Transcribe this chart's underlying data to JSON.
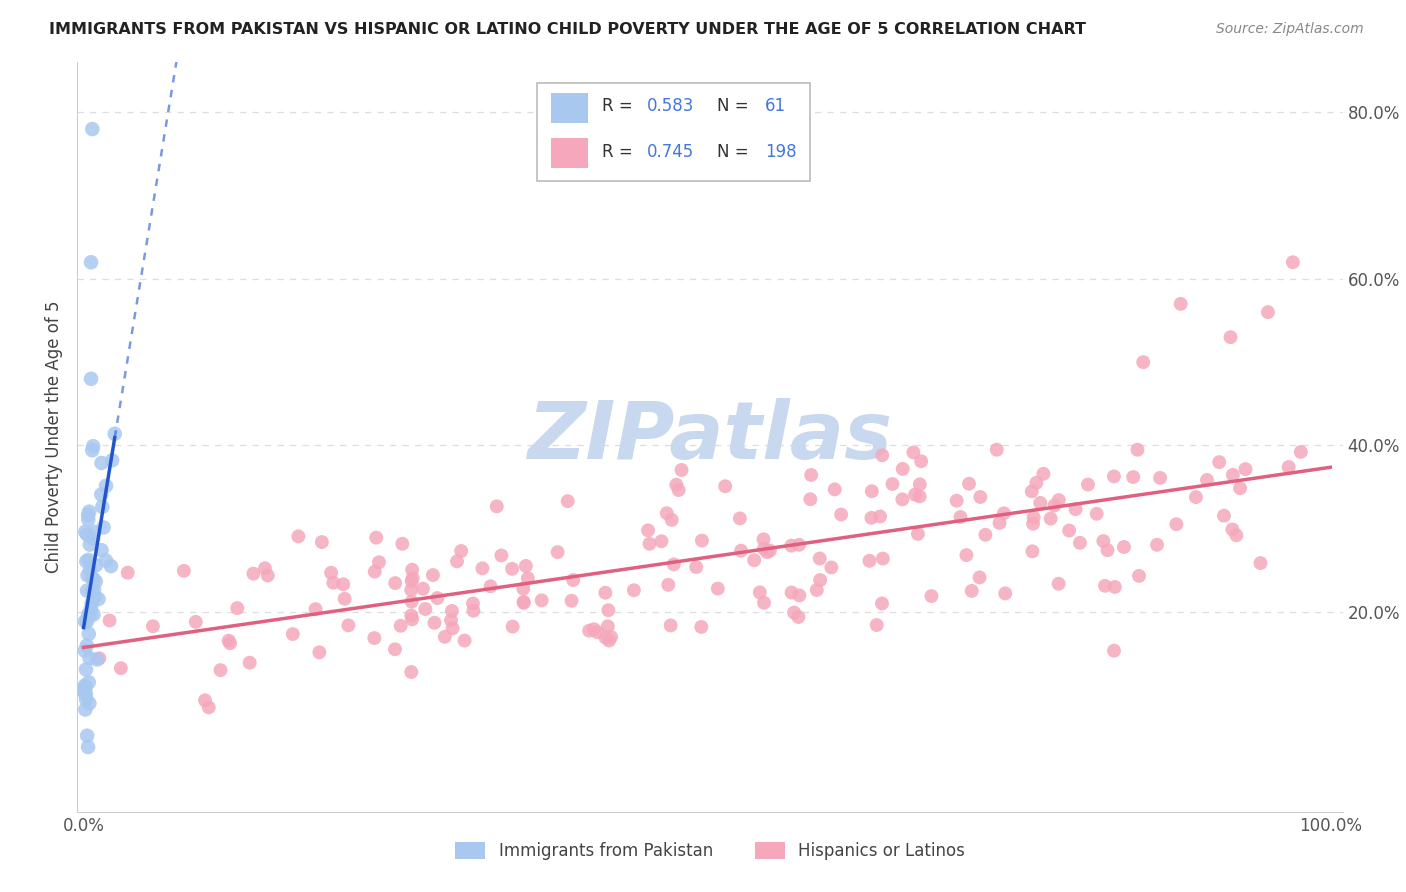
{
  "title": "IMMIGRANTS FROM PAKISTAN VS HISPANIC OR LATINO CHILD POVERTY UNDER THE AGE OF 5 CORRELATION CHART",
  "source": "Source: ZipAtlas.com",
  "ylabel": "Child Poverty Under the Age of 5",
  "legend_r1": "0.583",
  "legend_n1": "61",
  "legend_r2": "0.745",
  "legend_n2": "198",
  "color_blue": "#A8C8F0",
  "color_pink": "#F5A8BB",
  "color_blue_line": "#2255CC",
  "color_pink_line": "#E06080",
  "color_blue_num": "#4477DD",
  "watermark_color": "#C8D8EE",
  "grid_color": "#DDDDDD",
  "spine_color": "#CCCCCC",
  "tick_color": "#555555",
  "title_color": "#222222",
  "source_color": "#888888"
}
